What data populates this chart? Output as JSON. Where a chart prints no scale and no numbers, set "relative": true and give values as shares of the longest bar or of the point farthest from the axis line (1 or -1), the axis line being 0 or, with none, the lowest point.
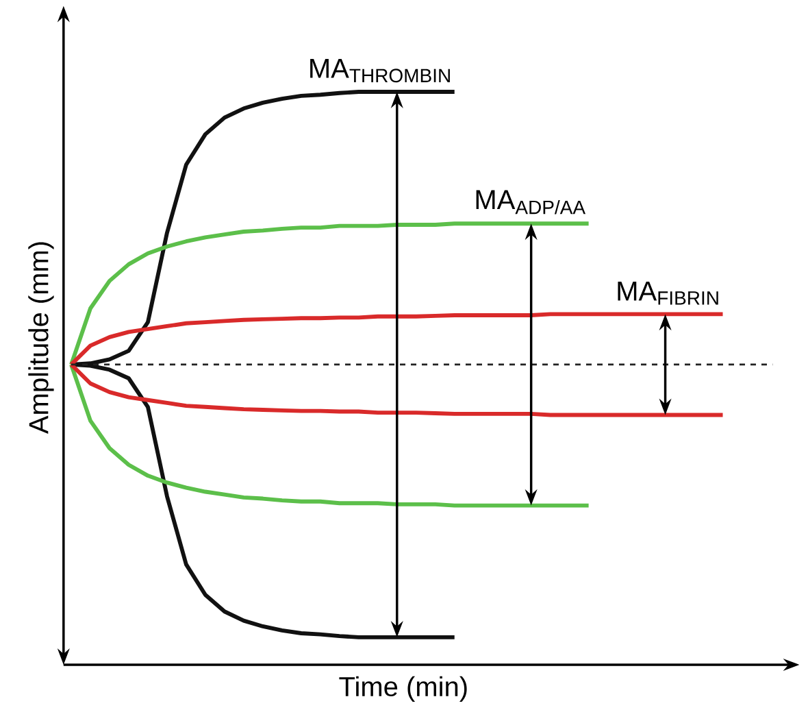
{
  "chart_data": {
    "type": "line",
    "relative": true,
    "xlabel": "Time (min)",
    "ylabel": "Amplitude (mm)",
    "categories": [
      null,
      null,
      null,
      null,
      null,
      null,
      null,
      null,
      null,
      null,
      null,
      null,
      null,
      null,
      null,
      null,
      null,
      null,
      null,
      null,
      null,
      null,
      null,
      null,
      null,
      null,
      null,
      null,
      null,
      null,
      null,
      null,
      null,
      null,
      null
    ],
    "series": [
      {
        "color": "#111111",
        "values": [
          0.524,
          0.526,
          0.533,
          0.548,
          0.598,
          0.754,
          0.873,
          0.926,
          0.955,
          0.971,
          0.981,
          0.988,
          0.993,
          0.995,
          0.998,
          1,
          1,
          1,
          1,
          1,
          1,
          null,
          null,
          null,
          null,
          null,
          null,
          null,
          null,
          null,
          null,
          null,
          null,
          null,
          null
        ]
      },
      {
        "color": "#111111",
        "values": [
          0.524,
          0.522,
          0.515,
          0.5,
          0.45,
          0.294,
          0.175,
          0.122,
          0.093,
          0.077,
          0.067,
          0.06,
          0.055,
          0.053,
          0.05,
          0.048,
          0.048,
          0.048,
          0.048,
          0.048,
          0.048,
          null,
          null,
          null,
          null,
          null,
          null,
          null,
          null,
          null,
          null,
          null,
          null,
          null,
          null
        ]
      },
      {
        "color": "#5cbf4a",
        "values": [
          0.524,
          0.622,
          0.67,
          0.699,
          0.718,
          0.73,
          0.739,
          0.746,
          0.751,
          0.756,
          0.758,
          0.761,
          0.763,
          0.763,
          0.766,
          0.766,
          0.766,
          0.768,
          0.768,
          0.768,
          0.77,
          0.77,
          0.77,
          0.77,
          0.77,
          0.77,
          0.77,
          0.77,
          null,
          null,
          null,
          null,
          null,
          null,
          null
        ]
      },
      {
        "color": "#5cbf4a",
        "values": [
          0.524,
          0.426,
          0.378,
          0.349,
          0.33,
          0.318,
          0.309,
          0.302,
          0.297,
          0.292,
          0.29,
          0.287,
          0.285,
          0.285,
          0.282,
          0.282,
          0.282,
          0.28,
          0.28,
          0.28,
          0.278,
          0.278,
          0.278,
          0.278,
          0.278,
          0.278,
          0.278,
          0.278,
          null,
          null,
          null,
          null,
          null,
          null,
          null
        ]
      },
      {
        "color": "#d92a2a",
        "values": [
          0.524,
          0.557,
          0.572,
          0.581,
          0.586,
          0.591,
          0.596,
          0.598,
          0.6,
          0.602,
          0.603,
          0.604,
          0.605,
          0.605,
          0.606,
          0.606,
          0.608,
          0.608,
          0.608,
          0.609,
          0.61,
          0.61,
          0.61,
          0.61,
          0.61,
          0.612,
          0.612,
          0.612,
          0.612,
          0.612,
          0.612,
          0.612,
          0.612,
          0.612,
          0.612
        ]
      },
      {
        "color": "#d92a2a",
        "values": [
          0.524,
          0.491,
          0.476,
          0.467,
          0.462,
          0.457,
          0.452,
          0.45,
          0.448,
          0.446,
          0.445,
          0.444,
          0.443,
          0.443,
          0.442,
          0.442,
          0.44,
          0.44,
          0.44,
          0.439,
          0.438,
          0.438,
          0.438,
          0.438,
          0.438,
          0.436,
          0.436,
          0.436,
          0.436,
          0.436,
          0.436,
          0.436,
          0.436,
          0.436,
          0.436
        ]
      }
    ],
    "ref_lines": [
      {
        "axis": "y",
        "value": 0.524,
        "color": "#222222",
        "line_style": "dashed"
      }
    ],
    "annotations": [
      "MA$_{THROMBIN}$",
      "MA$_{ADP/AA}$",
      "MA$_{FIBRIN}$"
    ],
    "line_style": "solid",
    "marker": "none"
  }
}
